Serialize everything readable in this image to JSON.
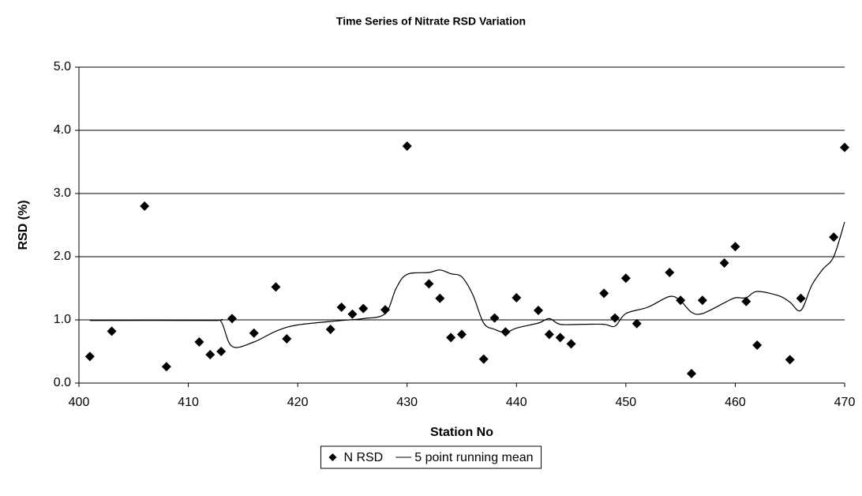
{
  "chart_data": {
    "type": "scatter",
    "title": "Time Series of Nitrate RSD Variation",
    "x_label": "Station No",
    "y_label": "RSD (%)",
    "xlim": [
      400,
      470
    ],
    "xticks": [
      400,
      410,
      420,
      430,
      440,
      450,
      460,
      470
    ],
    "ylim": [
      0,
      5
    ],
    "yticks": [
      {
        "value": 0,
        "label": "0.0"
      },
      {
        "value": 1,
        "label": "1.0"
      },
      {
        "value": 2,
        "label": "2.0"
      },
      {
        "value": 3,
        "label": "3.0"
      },
      {
        "value": 4,
        "label": "4.0"
      },
      {
        "value": 5,
        "label": "5.0"
      }
    ],
    "grid": true,
    "legend": "bottom",
    "series": [
      {
        "name": "N RSD",
        "type": "scatter",
        "color": "#000000",
        "x": [
          401,
          403,
          406,
          408,
          411,
          412,
          413,
          414,
          416,
          418,
          419,
          423,
          424,
          425,
          426,
          428,
          430,
          432,
          433,
          434,
          435,
          437,
          438,
          439,
          440,
          442,
          443,
          444,
          445,
          448,
          449,
          450,
          451,
          454,
          455,
          456,
          457,
          459,
          460,
          461,
          462,
          465,
          466,
          469,
          470
        ],
        "values": [
          0.42,
          0.82,
          2.8,
          0.26,
          0.65,
          0.45,
          0.5,
          1.02,
          0.79,
          1.52,
          0.7,
          0.85,
          1.2,
          1.09,
          1.18,
          1.16,
          3.75,
          1.57,
          1.34,
          0.72,
          0.77,
          0.38,
          1.03,
          0.81,
          1.35,
          1.15,
          0.77,
          0.72,
          0.62,
          1.42,
          1.03,
          1.66,
          0.94,
          1.75,
          1.31,
          0.15,
          1.31,
          1.9,
          2.16,
          1.29,
          0.6,
          0.37,
          1.34,
          2.31,
          3.73
        ]
      },
      {
        "name": "5 point running mean",
        "type": "line",
        "color": "#000000",
        "x": [
          401,
          412,
          413,
          414,
          416,
          418,
          420,
          424,
          426,
          428,
          429,
          430,
          432,
          433,
          434,
          435,
          436,
          437,
          438,
          439,
          440,
          442,
          443,
          444,
          446,
          448,
          449,
          450,
          452,
          454,
          455,
          456,
          457,
          459,
          460,
          461,
          462,
          464,
          465,
          466,
          467,
          468,
          469,
          470
        ],
        "values": [
          0.99,
          0.99,
          0.97,
          0.58,
          0.65,
          0.82,
          0.92,
          0.99,
          1.02,
          1.1,
          1.5,
          1.72,
          1.75,
          1.79,
          1.73,
          1.68,
          1.4,
          0.95,
          0.85,
          0.8,
          0.87,
          0.95,
          1.02,
          0.93,
          0.93,
          0.93,
          0.9,
          1.1,
          1.2,
          1.37,
          1.3,
          1.12,
          1.1,
          1.27,
          1.35,
          1.35,
          1.45,
          1.38,
          1.28,
          1.15,
          1.55,
          1.8,
          2.0,
          2.55
        ]
      }
    ]
  }
}
